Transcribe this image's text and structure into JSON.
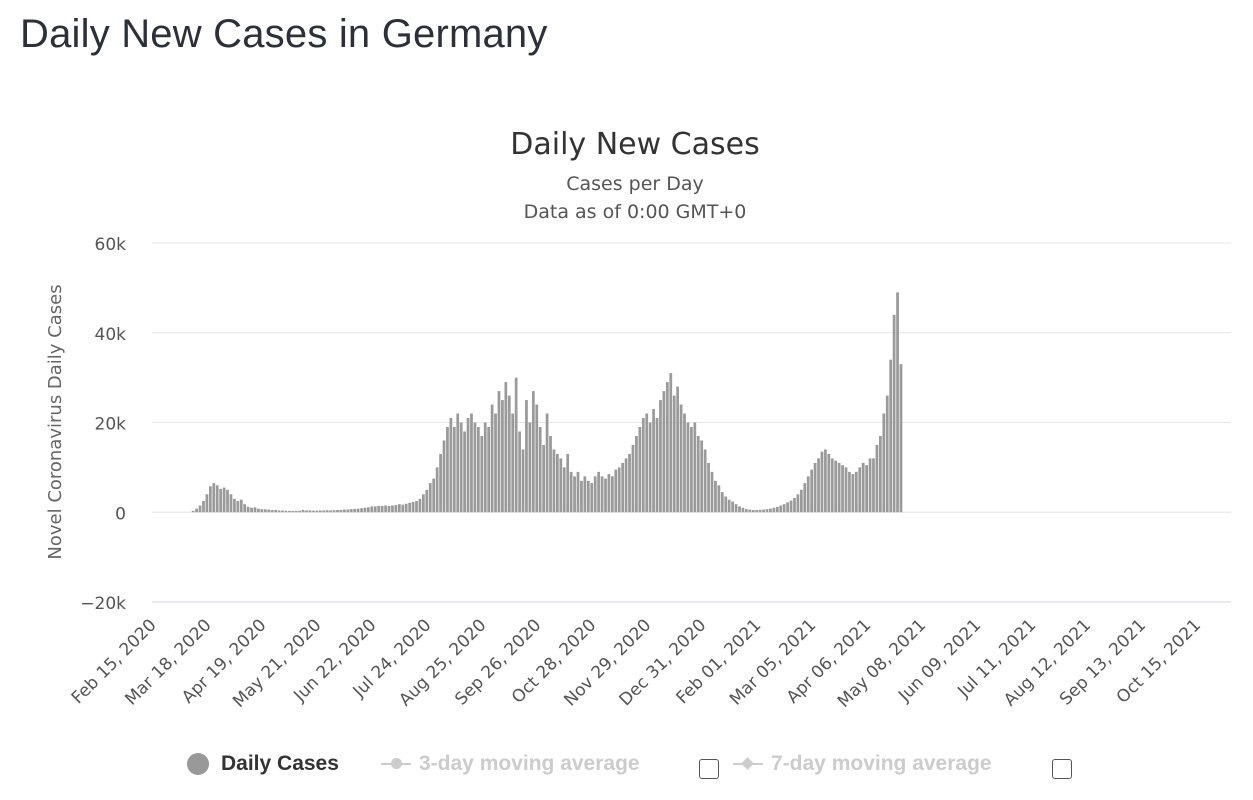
{
  "page": {
    "title": "Daily New Cases in Germany"
  },
  "colors": {
    "bar": "#9a9a9a",
    "grid": "#e6e6e6",
    "zero_axis": "#ccd6eb",
    "text": "#333333",
    "axis_text": "#555555"
  },
  "legend": {
    "items": [
      {
        "label": "Daily Cases",
        "active": true
      },
      {
        "label": "3-day moving average",
        "active": false
      },
      {
        "label": "7-day moving average",
        "active": false
      }
    ]
  },
  "chart_data": {
    "type": "bar",
    "title": "Daily New Cases",
    "subtitle_lines": [
      "Cases per Day",
      "Data as of 0:00 GMT+0"
    ],
    "ylabel": "Novel Coronavirus Daily Cases",
    "xlabel": "",
    "ylim": [
      -20000,
      60000
    ],
    "y_ticks": [
      -20000,
      0,
      20000,
      40000,
      60000
    ],
    "y_tick_labels": [
      "−20k",
      "0",
      "20k",
      "40k",
      "60k"
    ],
    "grid": true,
    "legend_position": "bottom",
    "x_start_date": "2020-02-15",
    "x_tick_labels": [
      "Feb 15, 2020",
      "Mar 18, 2020",
      "Apr 19, 2020",
      "May 21, 2020",
      "Jun 22, 2020",
      "Jul 24, 2020",
      "Aug 25, 2020",
      "Sep 26, 2020",
      "Oct 28, 2020",
      "Nov 29, 2020",
      "Dec 31, 2020",
      "Feb 01, 2021",
      "Mar 05, 2021",
      "Apr 06, 2021",
      "May 08, 2021",
      "Jun 09, 2021",
      "Jul 11, 2021",
      "Aug 12, 2021",
      "Sep 13, 2021",
      "Oct 15, 2021"
    ],
    "series": [
      {
        "name": "Daily Cases",
        "step_days": 2,
        "values": [
          0,
          0,
          0,
          0,
          0,
          0,
          0,
          0,
          0,
          0,
          0,
          300,
          800,
          1500,
          2500,
          4000,
          5800,
          6500,
          6000,
          5200,
          5500,
          5000,
          4000,
          3000,
          2500,
          2800,
          1800,
          1200,
          1000,
          1100,
          800,
          700,
          650,
          600,
          500,
          500,
          400,
          400,
          350,
          300,
          300,
          300,
          350,
          500,
          400,
          400,
          350,
          350,
          400,
          400,
          450,
          400,
          450,
          500,
          500,
          600,
          600,
          700,
          750,
          800,
          900,
          1000,
          1100,
          1300,
          1300,
          1400,
          1400,
          1500,
          1400,
          1500,
          1600,
          1800,
          1700,
          1900,
          2100,
          2300,
          2500,
          3000,
          4000,
          5000,
          6500,
          7500,
          10000,
          13000,
          16000,
          19000,
          21000,
          19000,
          22000,
          20000,
          18000,
          21000,
          22000,
          20000,
          19000,
          17000,
          20000,
          19000,
          24000,
          22000,
          27000,
          25000,
          29000,
          26000,
          22000,
          30000,
          18000,
          14000,
          25000,
          20000,
          27000,
          24000,
          19000,
          15000,
          22000,
          17000,
          14000,
          13000,
          12000,
          10000,
          13000,
          9000,
          8000,
          9000,
          7000,
          8000,
          7000,
          6500,
          8000,
          9000,
          8000,
          7500,
          8500,
          8000,
          9500,
          10000,
          11000,
          12000,
          13000,
          15000,
          17000,
          19000,
          21000,
          22000,
          20000,
          23000,
          21000,
          25000,
          27000,
          29000,
          31000,
          26000,
          28000,
          24000,
          22000,
          20000,
          19000,
          20000,
          17000,
          16000,
          14000,
          11000,
          9000,
          7000,
          6000,
          4500,
          3500,
          2800,
          2400,
          1800,
          1300,
          1000,
          700,
          600,
          500,
          500,
          550,
          600,
          700,
          800,
          1000,
          1200,
          1500,
          1800,
          2200,
          2600,
          3200,
          4000,
          5000,
          6500,
          8000,
          9500,
          11000,
          12000,
          13500,
          14000,
          13000,
          12000,
          11500,
          11000,
          10500,
          10000,
          9000,
          8500,
          9000,
          10000,
          11000,
          10500,
          12000,
          12000,
          15000,
          17000,
          22000,
          26000,
          34000,
          44000,
          49000,
          33000
        ]
      }
    ]
  }
}
